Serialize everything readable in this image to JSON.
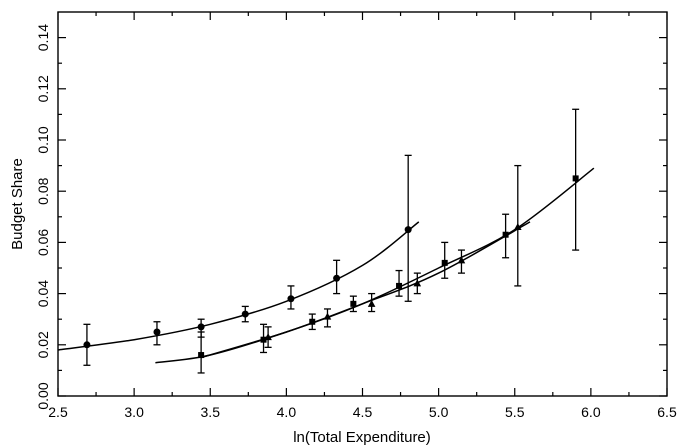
{
  "chart_data": {
    "type": "scatter",
    "title": "",
    "xlabel": "ln(Total Expenditure)",
    "ylabel": "Budget Share",
    "xlim": [
      2.5,
      6.5
    ],
    "ylim": [
      0.0,
      0.15
    ],
    "xticks": [
      "2.5",
      "3.0",
      "3.5",
      "4.0",
      "4.5",
      "5.0",
      "5.5",
      "6.0",
      "6.5"
    ],
    "yticks": [
      "0.00",
      "0.02",
      "0.04",
      "0.06",
      "0.08",
      "0.10",
      "0.12",
      "0.14"
    ],
    "grid": false,
    "legend": "none",
    "series": [
      {
        "marker": "circle",
        "points": [
          {
            "x": 2.69,
            "y": 0.02,
            "lo": 0.012,
            "hi": 0.028
          },
          {
            "x": 3.15,
            "y": 0.025,
            "lo": 0.02,
            "hi": 0.029
          },
          {
            "x": 3.44,
            "y": 0.027,
            "lo": 0.023,
            "hi": 0.03
          },
          {
            "x": 3.73,
            "y": 0.032,
            "lo": 0.029,
            "hi": 0.035
          },
          {
            "x": 4.03,
            "y": 0.038,
            "lo": 0.034,
            "hi": 0.043
          },
          {
            "x": 4.33,
            "y": 0.046,
            "lo": 0.04,
            "hi": 0.053
          },
          {
            "x": 4.8,
            "y": 0.065,
            "lo": 0.037,
            "hi": 0.094
          }
        ],
        "curve": [
          [
            2.5,
            0.018
          ],
          [
            3.0,
            0.022
          ],
          [
            3.5,
            0.028
          ],
          [
            4.0,
            0.037
          ],
          [
            4.5,
            0.051
          ],
          [
            4.87,
            0.068
          ]
        ]
      },
      {
        "marker": "square",
        "points": [
          {
            "x": 3.44,
            "y": 0.016,
            "lo": 0.009,
            "hi": 0.025
          },
          {
            "x": 3.85,
            "y": 0.022,
            "lo": 0.017,
            "hi": 0.028
          },
          {
            "x": 4.17,
            "y": 0.029,
            "lo": 0.026,
            "hi": 0.032
          },
          {
            "x": 4.44,
            "y": 0.036,
            "lo": 0.033,
            "hi": 0.039
          },
          {
            "x": 4.74,
            "y": 0.043,
            "lo": 0.039,
            "hi": 0.049
          },
          {
            "x": 5.04,
            "y": 0.052,
            "lo": 0.046,
            "hi": 0.06
          },
          {
            "x": 5.44,
            "y": 0.063,
            "lo": 0.054,
            "hi": 0.071
          },
          {
            "x": 5.9,
            "y": 0.085,
            "lo": 0.057,
            "hi": 0.112
          }
        ],
        "curve": [
          [
            3.44,
            0.015
          ],
          [
            4.0,
            0.025
          ],
          [
            4.5,
            0.036
          ],
          [
            5.0,
            0.05
          ],
          [
            5.5,
            0.065
          ],
          [
            6.02,
            0.089
          ]
        ]
      },
      {
        "marker": "triangle",
        "points": [
          {
            "x": 3.88,
            "y": 0.023,
            "lo": 0.019,
            "hi": 0.027
          },
          {
            "x": 4.27,
            "y": 0.031,
            "lo": 0.027,
            "hi": 0.034
          },
          {
            "x": 4.56,
            "y": 0.036,
            "lo": 0.033,
            "hi": 0.04
          },
          {
            "x": 4.86,
            "y": 0.044,
            "lo": 0.04,
            "hi": 0.048
          },
          {
            "x": 5.15,
            "y": 0.053,
            "lo": 0.048,
            "hi": 0.057
          },
          {
            "x": 5.52,
            "y": 0.066,
            "lo": 0.043,
            "hi": 0.09
          }
        ],
        "curve": [
          [
            3.14,
            0.013
          ],
          [
            3.5,
            0.016
          ],
          [
            4.0,
            0.025
          ],
          [
            4.5,
            0.036
          ],
          [
            5.0,
            0.048
          ],
          [
            5.6,
            0.068
          ]
        ]
      }
    ]
  }
}
